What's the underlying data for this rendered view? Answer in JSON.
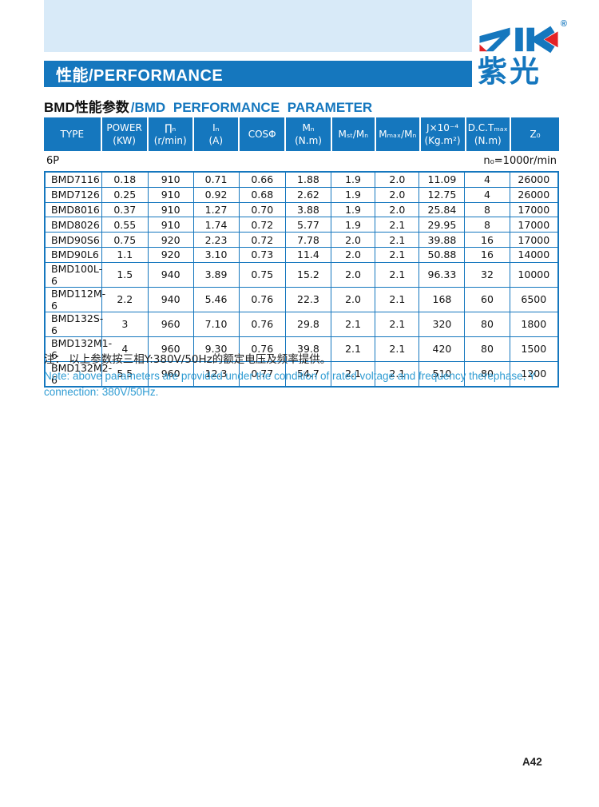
{
  "logo": {
    "registered": "®",
    "brand_cn": "紫光"
  },
  "banner": {
    "title": "性能/PERFORMANCE"
  },
  "section_title": {
    "cn": "BMD性能参数",
    "en": "/BMD PERFORMANCE PARAMETER"
  },
  "table": {
    "columns": [
      {
        "l1": "TYPE",
        "l2": ""
      },
      {
        "l1": "POWER",
        "l2": "(KW)"
      },
      {
        "l1": "∏ₙ",
        "l2": "(r/min)"
      },
      {
        "l1": "Iₙ",
        "l2": "(A)"
      },
      {
        "l1": "COSΦ",
        "l2": ""
      },
      {
        "l1": "Mₙ",
        "l2": "(N.m)"
      },
      {
        "l1": "Mₛₜ/Mₙ",
        "l2": ""
      },
      {
        "l1": "Mₘₐₓ/Mₙ",
        "l2": ""
      },
      {
        "l1": "J×10⁻⁴",
        "l2": "(Kg.m²)"
      },
      {
        "l1": "D.C.Tₘₐₓ",
        "l2": "(N.m)"
      },
      {
        "l1": "Z₀",
        "l2": ""
      }
    ],
    "group_row": {
      "left": "6P",
      "right": "n₀=1000r/min"
    },
    "rows": [
      [
        "BMD7116",
        "0.18",
        "910",
        "0.71",
        "0.66",
        "1.88",
        "1.9",
        "2.0",
        "11.09",
        "4",
        "26000"
      ],
      [
        "BMD7126",
        "0.25",
        "910",
        "0.92",
        "0.68",
        "2.62",
        "1.9",
        "2.0",
        "12.75",
        "4",
        "26000"
      ],
      [
        "BMD8016",
        "0.37",
        "910",
        "1.27",
        "0.70",
        "3.88",
        "1.9",
        "2.0",
        "25.84",
        "8",
        "17000"
      ],
      [
        "BMD8026",
        "0.55",
        "910",
        "1.74",
        "0.72",
        "5.77",
        "1.9",
        "2.1",
        "29.95",
        "8",
        "17000"
      ],
      [
        "BMD90S6",
        "0.75",
        "920",
        "2.23",
        "0.72",
        "7.78",
        "2.0",
        "2.1",
        "39.88",
        "16",
        "17000"
      ],
      [
        "BMD90L6",
        "1.1",
        "920",
        "3.10",
        "0.73",
        "11.4",
        "2.0",
        "2.1",
        "50.88",
        "16",
        "14000"
      ],
      [
        "BMD100L-6",
        "1.5",
        "940",
        "3.89",
        "0.75",
        "15.2",
        "2.0",
        "2.1",
        "96.33",
        "32",
        "10000"
      ],
      [
        "BMD112M-6",
        "2.2",
        "940",
        "5.46",
        "0.76",
        "22.3",
        "2.0",
        "2.1",
        "168",
        "60",
        "6500"
      ],
      [
        "BMD132S-6",
        "3",
        "960",
        "7.10",
        "0.76",
        "29.8",
        "2.1",
        "2.1",
        "320",
        "80",
        "1800"
      ],
      [
        "BMD132M1-6",
        "4",
        "960",
        "9.30",
        "0.76",
        "39.8",
        "2.1",
        "2.1",
        "420",
        "80",
        "1500"
      ],
      [
        "BMD132M2-6",
        "5.5",
        "960",
        "12.3",
        "0.77",
        "54.7",
        "2.1",
        "2.1",
        "510",
        "80",
        "1200"
      ]
    ]
  },
  "notes": {
    "cn": "注：  以上参数按三相Y:380V/50Hz的额定电压及频率提供。",
    "en": "Note: above parameters are provided under the condition of rated voltage and frequency therephase, Y connection: 380V/50Hz."
  },
  "footer": {
    "page": "A42"
  },
  "colors": {
    "blue": "#1577BE",
    "light_blue": "#D8EAF8",
    "red": "#E32226",
    "note_blue": "#2F9CD3"
  }
}
